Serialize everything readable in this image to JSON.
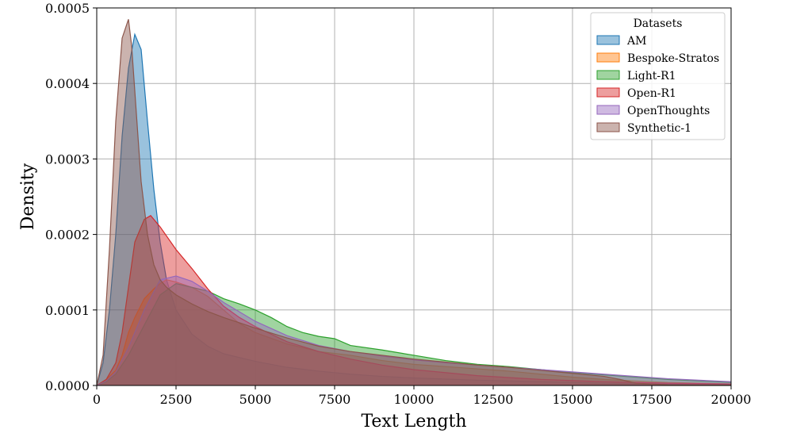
{
  "chart_data": {
    "type": "area",
    "xlabel": "Text Length",
    "ylabel": "Density",
    "xlim": [
      0,
      20000
    ],
    "ylim": [
      0,
      0.0005
    ],
    "x_ticks": [
      0,
      2500,
      5000,
      7500,
      10000,
      12500,
      15000,
      17500,
      20000
    ],
    "x_tick_labels": [
      "0",
      "2500",
      "5000",
      "7500",
      "10000",
      "12500",
      "15000",
      "17500",
      "20000"
    ],
    "y_ticks": [
      0,
      0.0001,
      0.0002,
      0.0003,
      0.0004,
      0.0005
    ],
    "y_tick_labels": [
      "0.0000",
      "0.0001",
      "0.0002",
      "0.0003",
      "0.0004",
      "0.0005"
    ],
    "grid": true,
    "legend": {
      "title": "Datasets",
      "placement": "top-right"
    },
    "series": [
      {
        "name": "AM",
        "color": "#1f77b4",
        "x": [
          0,
          200,
          400,
          600,
          800,
          1000,
          1200,
          1400,
          1600,
          1800,
          2000,
          2200,
          2500,
          3000,
          3500,
          4000,
          5000,
          6000,
          7000,
          8000,
          9000,
          10000,
          12000,
          14000,
          16000,
          18000,
          20000
        ],
        "y": [
          0,
          3e-05,
          0.0001,
          0.0002,
          0.00033,
          0.00042,
          0.000465,
          0.000445,
          0.00035,
          0.00026,
          0.00019,
          0.00014,
          0.0001,
          6.8e-05,
          5.2e-05,
          4.2e-05,
          3.2e-05,
          2.4e-05,
          1.9e-05,
          1.5e-05,
          1.2e-05,
          1e-05,
          7e-06,
          5e-06,
          3e-06,
          2e-06,
          1.5e-06
        ]
      },
      {
        "name": "Bespoke-Stratos",
        "color": "#ff7f0e",
        "x": [
          0,
          300,
          600,
          800,
          1000,
          1200,
          1500,
          1800,
          2000,
          2200,
          2500,
          3000,
          3500,
          4000,
          4500,
          5000,
          6000,
          7000,
          8000,
          9000,
          10000,
          11000,
          12000,
          13000,
          14000,
          15000,
          16000,
          17000,
          18000,
          20000
        ],
        "y": [
          0,
          8e-06,
          2e-05,
          4e-05,
          7e-05,
          9e-05,
          0.000115,
          0.000128,
          0.000135,
          0.00014,
          0.000137,
          0.00013,
          0.000118,
          0.0001,
          8.2e-05,
          7e-05,
          5.5e-05,
          4.5e-05,
          4e-05,
          3.3e-05,
          2.8e-05,
          2.5e-05,
          2.2e-05,
          1.9e-05,
          1.5e-05,
          1.1e-05,
          8e-06,
          6e-06,
          4e-06,
          2e-06
        ]
      },
      {
        "name": "Light-R1",
        "color": "#2ca02c",
        "x": [
          0,
          300,
          600,
          1000,
          1500,
          2000,
          2500,
          3000,
          3500,
          4000,
          4500,
          5000,
          5500,
          6000,
          6500,
          7000,
          7500,
          8000,
          9000,
          10000,
          11000,
          12000,
          13000,
          14000,
          15000,
          16000,
          17000,
          18000,
          20000
        ],
        "y": [
          0,
          5e-06,
          1.5e-05,
          4e-05,
          8e-05,
          0.00012,
          0.000135,
          0.00013,
          0.000125,
          0.000115,
          0.000108,
          0.0001,
          9e-05,
          7.8e-05,
          7e-05,
          6.5e-05,
          6.2e-05,
          5.3e-05,
          4.7e-05,
          4e-05,
          3.3e-05,
          2.8e-05,
          2.5e-05,
          2.1e-05,
          1.7e-05,
          1.4e-05,
          1.1e-05,
          8e-06,
          4e-06
        ]
      },
      {
        "name": "Open-R1",
        "color": "#d62728",
        "x": [
          0,
          300,
          600,
          800,
          1000,
          1200,
          1500,
          1700,
          2000,
          2500,
          3000,
          3500,
          4000,
          4500,
          5000,
          6000,
          7000,
          8000,
          9000,
          10000,
          12000,
          14000,
          16000,
          18000,
          20000
        ],
        "y": [
          0,
          8e-06,
          3e-05,
          7e-05,
          0.00013,
          0.00019,
          0.00022,
          0.000225,
          0.00021,
          0.00018,
          0.000155,
          0.000128,
          0.000105,
          9e-05,
          7.8e-05,
          5.8e-05,
          4.5e-05,
          3.5e-05,
          2.7e-05,
          2.1e-05,
          1.3e-05,
          8e-06,
          5e-06,
          3e-06,
          2e-06
        ]
      },
      {
        "name": "OpenThoughts",
        "color": "#9467bd",
        "x": [
          0,
          300,
          600,
          1000,
          1500,
          2000,
          2500,
          3000,
          3500,
          4000,
          5000,
          6000,
          7000,
          8000,
          9000,
          10000,
          11000,
          12000,
          13000,
          14000,
          15000,
          16000,
          17000,
          18000,
          19000,
          20000
        ],
        "y": [
          0,
          6e-06,
          1.8e-05,
          5e-05,
          0.0001,
          0.00014,
          0.000145,
          0.000138,
          0.000125,
          0.00011,
          8.5e-05,
          6.6e-05,
          5.3e-05,
          4.5e-05,
          3.9e-05,
          3.4e-05,
          3e-05,
          2.7e-05,
          2.4e-05,
          2.1e-05,
          1.8e-05,
          1.5e-05,
          1.2e-05,
          9e-06,
          7e-06,
          5e-06
        ]
      },
      {
        "name": "Synthetic-1",
        "color": "#8c564b",
        "x": [
          0,
          200,
          400,
          600,
          800,
          1000,
          1100,
          1200,
          1400,
          1600,
          1800,
          2000,
          2200,
          2500,
          3000,
          3500,
          4000,
          4500,
          5000,
          6000,
          7000,
          8000,
          9000,
          10000,
          11000,
          12000,
          13000,
          14000,
          15000,
          16000,
          16500,
          17000,
          18000,
          20000
        ],
        "y": [
          0,
          4e-05,
          0.00018,
          0.00035,
          0.00046,
          0.000485,
          0.00045,
          0.00039,
          0.00027,
          0.0002,
          0.00016,
          0.00014,
          0.00013,
          0.00012,
          0.000108,
          9.8e-05,
          9e-05,
          8.3e-05,
          7.6e-05,
          6.3e-05,
          5.2e-05,
          4.5e-05,
          4e-05,
          3.5e-05,
          3.1e-05,
          2.7e-05,
          2.4e-05,
          2e-05,
          1.6e-05,
          1.2e-05,
          8e-06,
          3e-06,
          1e-06,
          5e-07
        ]
      }
    ]
  }
}
